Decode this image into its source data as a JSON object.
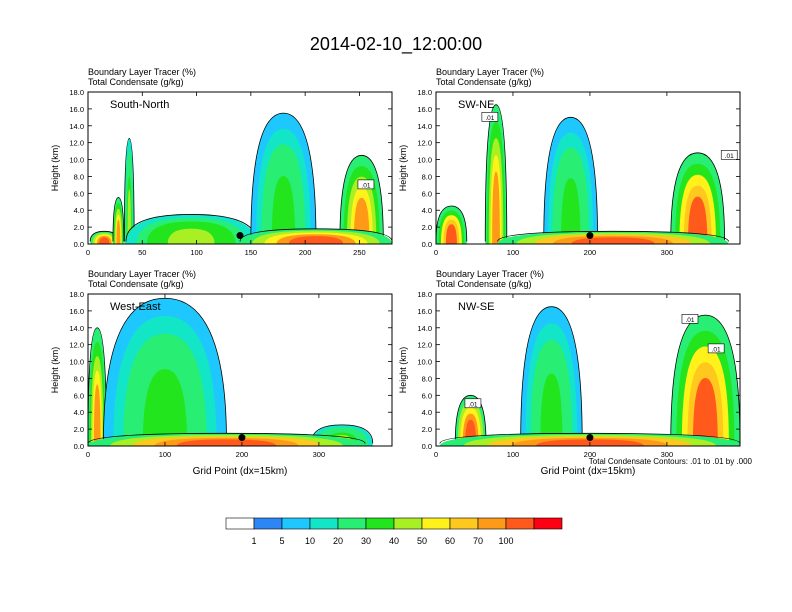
{
  "figure": {
    "title": "2014-02-10_12:00:00",
    "footnote": "Total Condensate Contours: .01 to .01 by .000"
  },
  "colorbar": {
    "levels": [
      "1",
      "5",
      "10",
      "20",
      "30",
      "40",
      "50",
      "60",
      "70",
      "100"
    ],
    "colors": [
      "#ffffff",
      "#2d86f6",
      "#1ec8ff",
      "#12e6c6",
      "#28ee73",
      "#22e51e",
      "#a8ef24",
      "#fff21a",
      "#ffc81e",
      "#ff9a19",
      "#ff5a1b",
      "#ff0012"
    ]
  },
  "chart_data": [
    {
      "type": "heatmap",
      "cross_section": "South-North",
      "title_line1": "Boundary Layer Tracer   (%)",
      "title_line2": "Total Condensate   (g/kg)",
      "xlabel": "",
      "ylabel": "Height (km)",
      "xlim": [
        0,
        280
      ],
      "ylim": [
        0,
        18
      ],
      "xticks": [
        "0",
        "50",
        "100",
        "150",
        "200",
        "250"
      ],
      "yticks": [
        "0.0",
        "2.0",
        "4.0",
        "6.0",
        "8.0",
        "10.0",
        "12.0",
        "14.0",
        "16.0",
        "18.0"
      ],
      "contour_labels": [
        {
          "text": ".01",
          "x": 256,
          "y": 7
        }
      ],
      "location_marker": {
        "x": 140,
        "y": 1
      },
      "tracer_features": [
        {
          "x": 15,
          "y_top": 1.5,
          "width": 26,
          "value": 80
        },
        {
          "x": 28,
          "y_top": 5.5,
          "width": 10,
          "value": 60
        },
        {
          "x": 38,
          "y_top": 12.5,
          "width": 9,
          "value": 30
        },
        {
          "x": 95,
          "y_top": 3.5,
          "width": 120,
          "value": 35
        },
        {
          "x": 180,
          "y_top": 15.5,
          "width": 60,
          "value": 20
        },
        {
          "x": 252,
          "y_top": 10.5,
          "width": 40,
          "value": 60
        },
        {
          "x": 210,
          "y_top": 1.8,
          "width": 140,
          "value": 80
        }
      ]
    },
    {
      "type": "heatmap",
      "cross_section": "SW-NE",
      "title_line1": "Boundary Layer Tracer   (%)",
      "title_line2": "Total Condensate   (g/kg)",
      "xlabel": "",
      "ylabel": "Height (km)",
      "xlim": [
        0,
        395
      ],
      "ylim": [
        0,
        18
      ],
      "xticks": [
        "0",
        "100",
        "200",
        "300"
      ],
      "yticks": [
        "0.0",
        "2.0",
        "4.0",
        "6.0",
        "8.0",
        "10.0",
        "12.0",
        "14.0",
        "16.0",
        "18.0"
      ],
      "contour_labels": [
        {
          "text": ".01",
          "x": 70,
          "y": 15
        },
        {
          "text": ".01",
          "x": 381,
          "y": 10.5
        }
      ],
      "location_marker": {
        "x": 200,
        "y": 1
      },
      "tracer_features": [
        {
          "x": 20,
          "y_top": 4.5,
          "width": 40,
          "value": 70
        },
        {
          "x": 78,
          "y_top": 16.5,
          "width": 28,
          "value": 60
        },
        {
          "x": 175,
          "y_top": 15,
          "width": 70,
          "value": 20
        },
        {
          "x": 340,
          "y_top": 10.8,
          "width": 70,
          "value": 70
        },
        {
          "x": 230,
          "y_top": 1.5,
          "width": 300,
          "value": 85
        }
      ]
    },
    {
      "type": "heatmap",
      "cross_section": "West-East",
      "title_line1": "Boundary Layer Tracer   (%)",
      "title_line2": "Total Condensate   (g/kg)",
      "xlabel": "Grid Point (dx=15km)",
      "ylabel": "Height (km)",
      "xlim": [
        0,
        395
      ],
      "ylim": [
        0,
        18
      ],
      "xticks": [
        "0",
        "100",
        "200",
        "300"
      ],
      "yticks": [
        "0.0",
        "2.0",
        "4.0",
        "6.0",
        "8.0",
        "10.0",
        "12.0",
        "14.0",
        "16.0",
        "18.0"
      ],
      "contour_labels": [],
      "location_marker": {
        "x": 200,
        "y": 1
      },
      "tracer_features": [
        {
          "x": 12,
          "y_top": 14,
          "width": 24,
          "value": 60
        },
        {
          "x": 50,
          "y_top": 12,
          "width": 40,
          "value": 45
        },
        {
          "x": 100,
          "y_top": 17.5,
          "width": 160,
          "value": 20
        },
        {
          "x": 330,
          "y_top": 2.5,
          "width": 80,
          "value": 30
        },
        {
          "x": 180,
          "y_top": 1.5,
          "width": 360,
          "value": 85
        }
      ]
    },
    {
      "type": "heatmap",
      "cross_section": "NW-SE",
      "title_line1": "Boundary Layer Tracer   (%)",
      "title_line2": "Total Condensate   (g/kg)",
      "xlabel": "Grid Point (dx=15km)",
      "ylabel": "Height (km)",
      "xlim": [
        0,
        395
      ],
      "ylim": [
        0,
        18
      ],
      "xticks": [
        "0",
        "100",
        "200",
        "300"
      ],
      "yticks": [
        "0.0",
        "2.0",
        "4.0",
        "6.0",
        "8.0",
        "10.0",
        "12.0",
        "14.0",
        "16.0",
        "18.0"
      ],
      "contour_labels": [
        {
          "text": ".01",
          "x": 48,
          "y": 5
        },
        {
          "text": ".01",
          "x": 330,
          "y": 15
        },
        {
          "text": ".01",
          "x": 364,
          "y": 11.5
        }
      ],
      "location_marker": {
        "x": 200,
        "y": 1
      },
      "tracer_features": [
        {
          "x": 45,
          "y_top": 6,
          "width": 40,
          "value": 75
        },
        {
          "x": 150,
          "y_top": 16.5,
          "width": 80,
          "value": 20
        },
        {
          "x": 350,
          "y_top": 15.5,
          "width": 90,
          "value": 70
        },
        {
          "x": 200,
          "y_top": 1.5,
          "width": 390,
          "value": 85
        }
      ]
    }
  ]
}
